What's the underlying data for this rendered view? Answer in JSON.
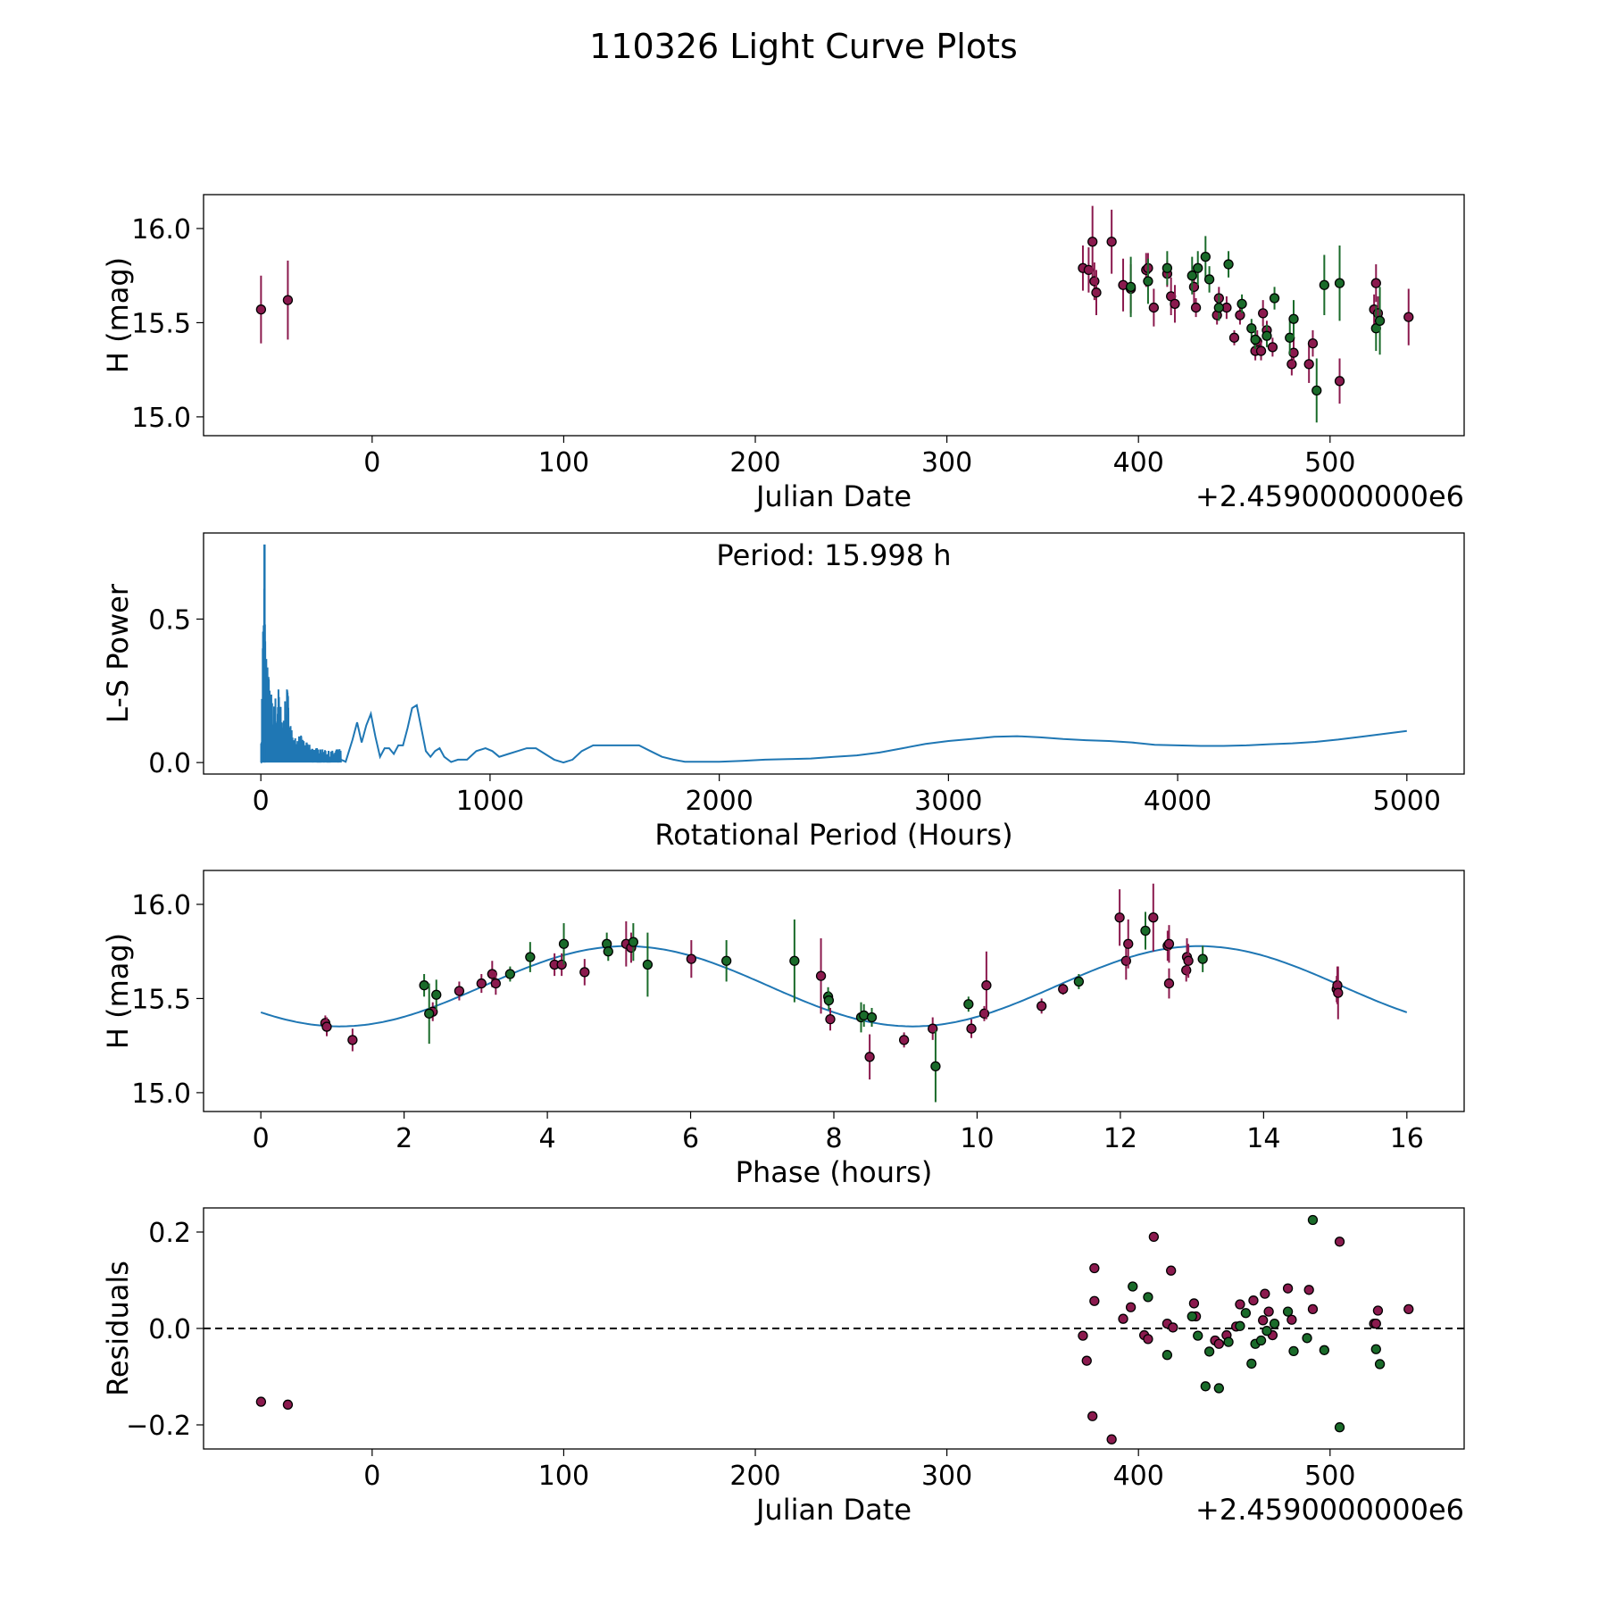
{
  "figure_title": "110326 Light Curve Plots",
  "colors": {
    "r_band": "#8b1a4e",
    "g_band": "#1a6b2a",
    "curve": "#1f77b4",
    "marker_edge": "#000000"
  },
  "chart_data": [
    {
      "id": "photometry",
      "type": "scatter",
      "xlabel": "Julian Date",
      "ylabel": "H (mag)",
      "offset_text": "+2.4590000000e6",
      "xlim": [
        -88,
        570
      ],
      "ylim": [
        14.9,
        16.18
      ],
      "xticks": [
        0,
        100,
        200,
        300,
        400,
        500
      ],
      "yticks": [
        15.0,
        15.5,
        16.0
      ],
      "ytick_labels": [
        "15.0",
        "15.5",
        "16.0"
      ],
      "series": [
        {
          "name": "r",
          "color_key": "r_band",
          "x": [
            -58,
            -44,
            371,
            374,
            376,
            377,
            378,
            386,
            392,
            396,
            404,
            405,
            408,
            415,
            417,
            419,
            429,
            430,
            441,
            442,
            446,
            450,
            453,
            461,
            462,
            464,
            465,
            467,
            470,
            480,
            481,
            489,
            491,
            505,
            523,
            524,
            525,
            541
          ],
          "y": [
            15.57,
            15.62,
            15.79,
            15.78,
            15.93,
            15.72,
            15.66,
            15.93,
            15.7,
            15.68,
            15.78,
            15.79,
            15.58,
            15.76,
            15.64,
            15.6,
            15.69,
            15.58,
            15.54,
            15.63,
            15.58,
            15.42,
            15.54,
            15.35,
            15.4,
            15.35,
            15.55,
            15.46,
            15.37,
            15.28,
            15.34,
            15.28,
            15.39,
            15.19,
            15.57,
            15.71,
            15.55,
            15.53
          ],
          "err": [
            0.18,
            0.21,
            0.12,
            0.12,
            0.19,
            0.1,
            0.12,
            0.17,
            0.14,
            0.13,
            0.09,
            0.08,
            0.1,
            0.07,
            0.1,
            0.1,
            0.09,
            0.05,
            0.05,
            0.06,
            0.06,
            0.04,
            0.05,
            0.05,
            0.06,
            0.05,
            0.07,
            0.05,
            0.05,
            0.06,
            0.07,
            0.1,
            0.07,
            0.12,
            0.08,
            0.1,
            0.09,
            0.15
          ]
        },
        {
          "name": "g",
          "color_key": "g_band",
          "x": [
            396,
            405,
            415,
            428,
            431,
            435,
            437,
            442,
            447,
            454,
            459,
            461,
            467,
            471,
            479,
            481,
            493,
            497,
            505,
            524,
            526
          ],
          "y": [
            15.69,
            15.72,
            15.79,
            15.75,
            15.79,
            15.85,
            15.73,
            15.58,
            15.81,
            15.6,
            15.47,
            15.41,
            15.43,
            15.63,
            15.42,
            15.52,
            15.14,
            15.7,
            15.71,
            15.47,
            15.51
          ],
          "err": [
            0.16,
            0.12,
            0.09,
            0.1,
            0.09,
            0.11,
            0.07,
            0.07,
            0.07,
            0.05,
            0.05,
            0.05,
            0.06,
            0.06,
            0.09,
            0.1,
            0.17,
            0.16,
            0.2,
            0.12,
            0.18
          ]
        }
      ]
    },
    {
      "id": "periodogram",
      "type": "line",
      "xlabel": "Rotational Period (Hours)",
      "ylabel": "L-S Power",
      "annotation": "Period: 15.998 h",
      "xlim": [
        -250,
        5250
      ],
      "ylim": [
        -0.04,
        0.8
      ],
      "xticks": [
        0,
        1000,
        2000,
        3000,
        4000,
        5000
      ],
      "yticks": [
        0.0,
        0.5
      ],
      "ytick_labels": [
        "0.0",
        "0.5"
      ],
      "envelope_points": [
        [
          0,
          0
        ],
        [
          5,
          0.3
        ],
        [
          10,
          0.6
        ],
        [
          16,
          0.76
        ],
        [
          22,
          0.4
        ],
        [
          40,
          0.28
        ],
        [
          55,
          0.2
        ],
        [
          75,
          0.29
        ],
        [
          95,
          0.14
        ],
        [
          115,
          0.28
        ],
        [
          140,
          0.08
        ],
        [
          170,
          0.1
        ],
        [
          200,
          0.07
        ],
        [
          250,
          0.05
        ],
        [
          300,
          0.04
        ],
        [
          350,
          0.05
        ]
      ],
      "x": [
        350,
        370,
        400,
        420,
        440,
        460,
        480,
        500,
        520,
        540,
        560,
        580,
        600,
        620,
        640,
        660,
        680,
        700,
        720,
        740,
        760,
        780,
        800,
        830,
        860,
        900,
        940,
        980,
        1010,
        1040,
        1080,
        1120,
        1160,
        1200,
        1240,
        1280,
        1320,
        1360,
        1400,
        1450,
        1500,
        1550,
        1600,
        1650,
        1700,
        1750,
        1800,
        1850,
        1900,
        2000,
        2100,
        2200,
        2300,
        2400,
        2500,
        2600,
        2700,
        2800,
        2900,
        3000,
        3100,
        3200,
        3300,
        3400,
        3500,
        3600,
        3700,
        3800,
        3900,
        4000,
        4100,
        4200,
        4300,
        4400,
        4500,
        4600,
        4700,
        4800,
        4900,
        5000
      ],
      "y": [
        0.01,
        0.003,
        0.08,
        0.14,
        0.07,
        0.13,
        0.17,
        0.09,
        0.02,
        0.05,
        0.05,
        0.03,
        0.06,
        0.06,
        0.12,
        0.19,
        0.2,
        0.12,
        0.04,
        0.02,
        0.04,
        0.05,
        0.02,
        0.002,
        0.01,
        0.01,
        0.04,
        0.05,
        0.04,
        0.02,
        0.03,
        0.04,
        0.05,
        0.05,
        0.03,
        0.01,
        0.0,
        0.01,
        0.04,
        0.06,
        0.06,
        0.06,
        0.06,
        0.06,
        0.04,
        0.02,
        0.01,
        0.003,
        0.003,
        0.003,
        0.006,
        0.01,
        0.012,
        0.014,
        0.02,
        0.025,
        0.035,
        0.05,
        0.065,
        0.075,
        0.082,
        0.09,
        0.092,
        0.088,
        0.082,
        0.078,
        0.075,
        0.07,
        0.062,
        0.06,
        0.058,
        0.058,
        0.06,
        0.064,
        0.067,
        0.072,
        0.08,
        0.09,
        0.1,
        0.11
      ]
    },
    {
      "id": "phase_fold",
      "type": "scatter",
      "xlabel": "Phase (hours)",
      "ylabel": "H (mag)",
      "xlim": [
        -0.8,
        16.8
      ],
      "ylim": [
        14.9,
        16.18
      ],
      "xticks": [
        0,
        2,
        4,
        6,
        8,
        10,
        12,
        14,
        16
      ],
      "yticks": [
        15.0,
        15.5,
        16.0
      ],
      "ytick_labels": [
        "15.0",
        "15.5",
        "16.0"
      ],
      "fit_model": {
        "mean": 15.565,
        "amplitude": 0.213,
        "period": 8.0,
        "peak_phase": 5.1,
        "x_range": [
          0,
          16
        ]
      },
      "series": [
        {
          "name": "r",
          "color_key": "r_band",
          "x": [
            0.9,
            0.92,
            1.28,
            2.4,
            2.77,
            3.08,
            3.23,
            3.28,
            4.1,
            4.2,
            4.52,
            5.1,
            5.17,
            6.01,
            7.82,
            7.95,
            8.5,
            8.98,
            9.38,
            9.92,
            10.1,
            10.13,
            10.9,
            11.2,
            11.99,
            12.08,
            12.11,
            12.66,
            12.68,
            12.68,
            12.92,
            12.93,
            12.95,
            15.02,
            15.03,
            15.04,
            12.46
          ],
          "y": [
            15.37,
            15.35,
            15.28,
            15.43,
            15.54,
            15.58,
            15.63,
            15.58,
            15.68,
            15.68,
            15.64,
            15.79,
            15.77,
            15.71,
            15.62,
            15.39,
            15.19,
            15.28,
            15.34,
            15.34,
            15.42,
            15.57,
            15.46,
            15.55,
            15.93,
            15.7,
            15.79,
            15.78,
            15.79,
            15.58,
            15.65,
            15.72,
            15.7,
            15.55,
            15.57,
            15.53,
            15.93
          ],
          "err": [
            0.04,
            0.05,
            0.06,
            0.05,
            0.05,
            0.05,
            0.07,
            0.06,
            0.06,
            0.06,
            0.07,
            0.12,
            0.08,
            0.1,
            0.2,
            0.06,
            0.12,
            0.04,
            0.06,
            0.05,
            0.04,
            0.18,
            0.04,
            0.03,
            0.15,
            0.1,
            0.13,
            0.08,
            0.1,
            0.08,
            0.06,
            0.1,
            0.09,
            0.07,
            0.1,
            0.14,
            0.18
          ]
        },
        {
          "name": "g",
          "color_key": "g_band",
          "x": [
            2.28,
            2.35,
            2.45,
            3.48,
            3.76,
            4.23,
            4.83,
            4.85,
            5.2,
            5.4,
            6.5,
            7.45,
            7.92,
            7.93,
            8.38,
            8.42,
            8.53,
            9.42,
            9.88,
            11.42,
            12.35,
            13.15
          ],
          "y": [
            15.57,
            15.42,
            15.52,
            15.63,
            15.72,
            15.79,
            15.79,
            15.75,
            15.8,
            15.68,
            15.7,
            15.7,
            15.51,
            15.49,
            15.4,
            15.41,
            15.4,
            15.14,
            15.47,
            15.59,
            15.86,
            15.71
          ],
          "err": [
            0.06,
            0.16,
            0.08,
            0.04,
            0.08,
            0.11,
            0.06,
            0.05,
            0.1,
            0.17,
            0.11,
            0.22,
            0.05,
            0.05,
            0.08,
            0.06,
            0.05,
            0.19,
            0.04,
            0.04,
            0.1,
            0.07
          ]
        }
      ]
    },
    {
      "id": "residuals",
      "type": "scatter",
      "xlabel": "Julian Date",
      "ylabel": "Residuals",
      "offset_text": "+2.4590000000e6",
      "xlim": [
        -88,
        570
      ],
      "ylim": [
        -0.25,
        0.25
      ],
      "xticks": [
        0,
        100,
        200,
        300,
        400,
        500
      ],
      "yticks": [
        -0.2,
        0.0,
        0.2
      ],
      "ytick_labels": [
        "−0.2",
        "0.0",
        "0.2"
      ],
      "reference_line": 0.0,
      "series": [
        {
          "name": "r",
          "color_key": "r_band",
          "x": [
            -58,
            -44,
            371,
            373,
            376,
            377,
            377,
            386,
            392,
            396,
            403,
            405,
            408,
            415,
            417,
            418,
            429,
            430,
            440,
            442,
            446,
            451,
            453,
            460,
            465,
            466,
            468,
            470,
            478,
            480,
            489,
            491,
            505,
            523,
            524,
            525,
            541
          ],
          "y": [
            -0.152,
            -0.158,
            -0.015,
            -0.067,
            -0.182,
            0.125,
            0.057,
            -0.23,
            0.02,
            0.044,
            -0.014,
            -0.022,
            0.19,
            0.01,
            0.12,
            0.002,
            0.052,
            0.025,
            -0.025,
            -0.032,
            -0.014,
            0.004,
            0.05,
            0.058,
            0.017,
            0.072,
            0.035,
            -0.014,
            0.083,
            0.018,
            0.08,
            0.04,
            0.18,
            0.01,
            0.01,
            0.037,
            0.04
          ]
        },
        {
          "name": "g",
          "color_key": "g_band",
          "x": [
            397,
            405,
            415,
            428,
            431,
            435,
            437,
            442,
            447,
            453,
            456,
            459,
            461,
            464,
            467,
            471,
            478,
            481,
            488,
            491,
            497,
            505,
            524,
            526
          ],
          "y": [
            0.087,
            0.065,
            -0.055,
            0.025,
            -0.015,
            -0.12,
            -0.048,
            -0.124,
            -0.028,
            0.005,
            0.032,
            -0.073,
            -0.032,
            -0.025,
            -0.005,
            0.01,
            0.035,
            -0.047,
            -0.02,
            0.225,
            -0.045,
            -0.205,
            -0.043,
            -0.074
          ]
        }
      ]
    }
  ]
}
